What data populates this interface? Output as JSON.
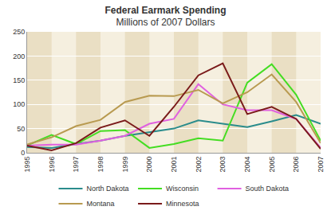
{
  "chart_data": {
    "type": "line",
    "title": "Federal Earmark Spending",
    "subtitle": "Millions of 2007 Dollars",
    "categories": [
      "1995",
      "1996",
      "1997",
      "1998",
      "1999",
      "2000",
      "2001",
      "2002",
      "2003",
      "2004",
      "2005",
      "2006",
      "2007"
    ],
    "series": [
      {
        "name": "North Dakota",
        "color": "#2a8c8c",
        "values": [
          12,
          10,
          18,
          25,
          35,
          42,
          50,
          67,
          60,
          53,
          65,
          78,
          60
        ]
      },
      {
        "name": "Wisconsin",
        "color": "#44dd22",
        "values": [
          15,
          37,
          18,
          45,
          47,
          10,
          18,
          30,
          25,
          145,
          183,
          120,
          25
        ]
      },
      {
        "name": "South Dakota",
        "color": "#e060e0",
        "values": [
          15,
          17,
          17,
          25,
          35,
          60,
          70,
          142,
          100,
          88,
          88,
          70,
          10
        ]
      },
      {
        "name": "Montana",
        "color": "#b89a50",
        "values": [
          17,
          32,
          55,
          68,
          105,
          118,
          117,
          130,
          102,
          125,
          162,
          105,
          20
        ]
      },
      {
        "name": "Minnesota",
        "color": "#7a1a1a",
        "values": [
          15,
          5,
          20,
          52,
          67,
          35,
          95,
          160,
          185,
          80,
          95,
          70,
          8
        ]
      }
    ],
    "ylim": [
      0,
      250
    ],
    "yticks": [
      0,
      50,
      100,
      150,
      200,
      250
    ],
    "grid": true,
    "legend": "bottom"
  }
}
